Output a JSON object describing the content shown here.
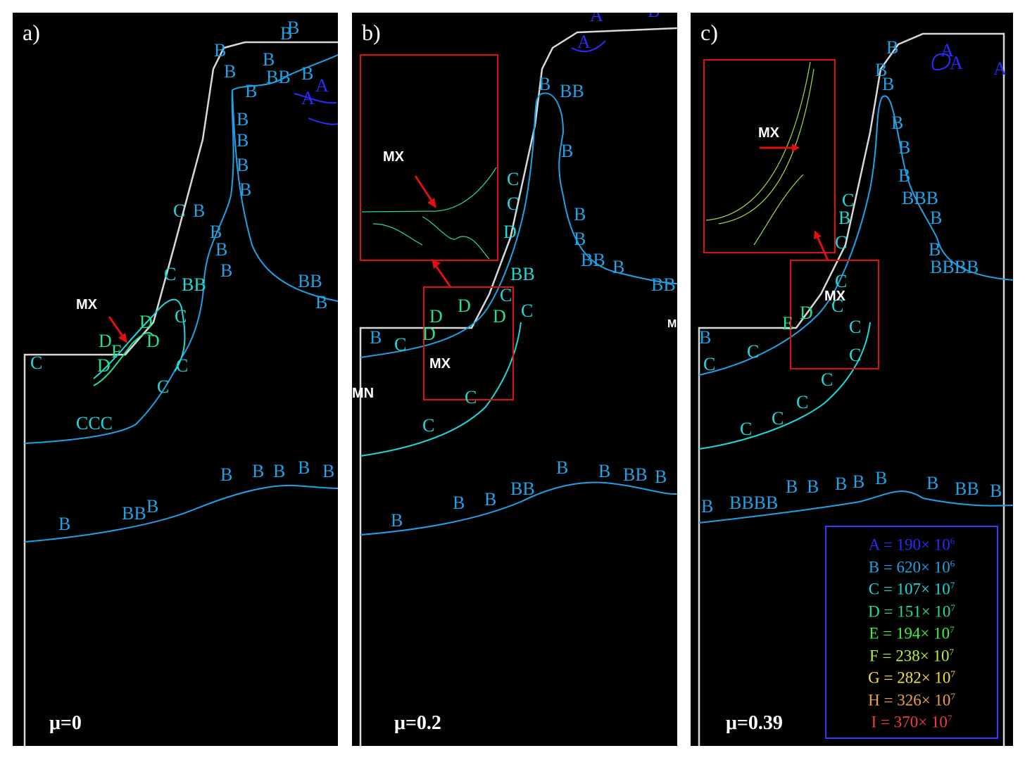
{
  "panels": [
    {
      "label": "a)",
      "mu": "μ=0",
      "mx": "MX"
    },
    {
      "label": "b)",
      "mu": "μ=0.2",
      "mx": "MX",
      "mx_inset": "MX",
      "mn": "MN",
      "m": "M"
    },
    {
      "label": "c)",
      "mu": "μ=0.39",
      "mx": "MX",
      "mx_inset": "MX"
    }
  ],
  "legend": {
    "border_color": "#3a3aff",
    "entries": [
      {
        "letter": "A",
        "mant": "190",
        "exp": "6",
        "color": "#2b2bff"
      },
      {
        "letter": "B",
        "mant": "620",
        "exp": "6",
        "color": "#1fa2e6"
      },
      {
        "letter": "C",
        "mant": "107",
        "exp": "7",
        "color": "#1fd8d8"
      },
      {
        "letter": "D",
        "mant": "151",
        "exp": "7",
        "color": "#22e08c"
      },
      {
        "letter": "E",
        "mant": "194",
        "exp": "7",
        "color": "#3df23d"
      },
      {
        "letter": "F",
        "mant": "238",
        "exp": "7",
        "color": "#b6f23d"
      },
      {
        "letter": "G",
        "mant": "282",
        "exp": "7",
        "color": "#f2e23d"
      },
      {
        "letter": "H",
        "mant": "326",
        "exp": "7",
        "color": "#f2a23d"
      },
      {
        "letter": "I",
        "mant": "370",
        "exp": "7",
        "color": "#f23d3d"
      }
    ]
  },
  "colors": {
    "outline": "#d8d8d8",
    "box": "#e01010",
    "arrow": "#e01010",
    "contour_b": "#1fa2e6",
    "contour_c": "#1fd8d8",
    "contour_d": "#22e08c"
  }
}
